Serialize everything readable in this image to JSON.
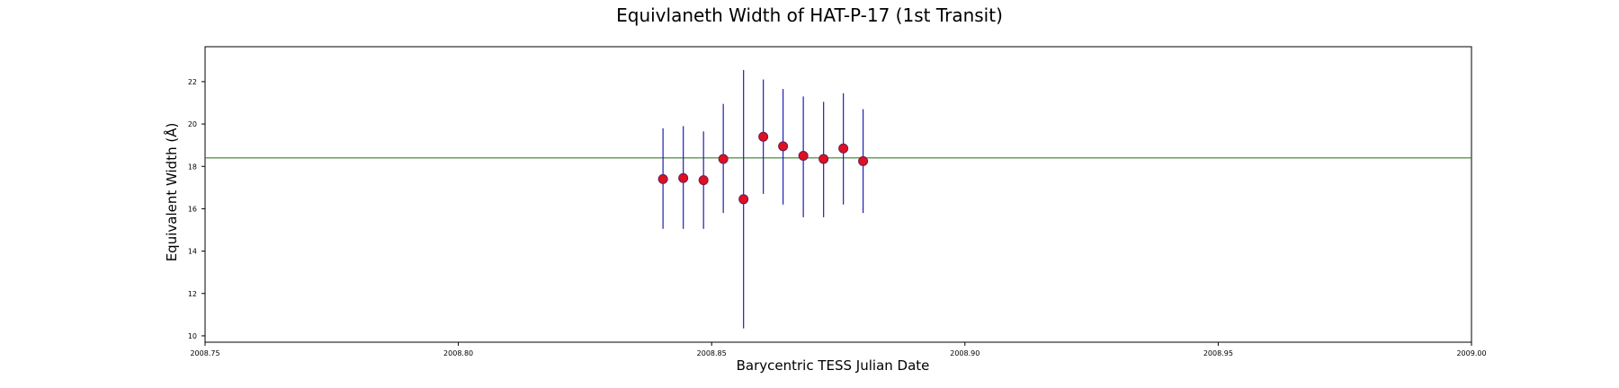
{
  "chart_data": {
    "type": "scatter",
    "title": "Equivlaneth Width of HAT-P-17 (1st Transit)",
    "xlabel": "Barycentric TESS Julian Date",
    "ylabel": "Equivalent Width (Å)",
    "xlim": [
      2008.75,
      2009.0
    ],
    "ylim": [
      9.7,
      23.65
    ],
    "xticks": [
      2008.75,
      2008.8,
      2008.85,
      2008.9,
      2008.95,
      2009.0
    ],
    "xtick_labels": [
      "2008.75",
      "2008.80",
      "2008.85",
      "2008.90",
      "2008.95",
      "2009.00"
    ],
    "yticks": [
      10,
      12,
      14,
      16,
      18,
      20,
      22
    ],
    "ytick_labels": [
      "10",
      "12",
      "14",
      "16",
      "18",
      "20",
      "22"
    ],
    "grid": false,
    "reference_line": {
      "y": 18.4,
      "color": "#3a7d2a"
    },
    "series": [
      {
        "marker_color": "#e0101e",
        "marker_edge_color": "#6a1a5a",
        "errorbar_color": "#1f1fb4",
        "x": [
          2008.8404,
          2008.8444,
          2008.8484,
          2008.8523,
          2008.8563,
          2008.8602,
          2008.8641,
          2008.8681,
          2008.8721,
          2008.876,
          2008.8799
        ],
        "y": [
          17.4,
          17.45,
          17.35,
          18.35,
          16.45,
          19.4,
          18.95,
          18.5,
          18.35,
          18.85,
          18.25
        ],
        "yerr_low": [
          15.05,
          15.05,
          15.05,
          15.8,
          10.35,
          16.7,
          16.2,
          15.6,
          15.6,
          16.2,
          15.8
        ],
        "yerr_high": [
          19.8,
          19.9,
          19.65,
          20.95,
          22.55,
          22.1,
          21.65,
          21.3,
          21.05,
          21.45,
          20.7
        ]
      }
    ]
  }
}
